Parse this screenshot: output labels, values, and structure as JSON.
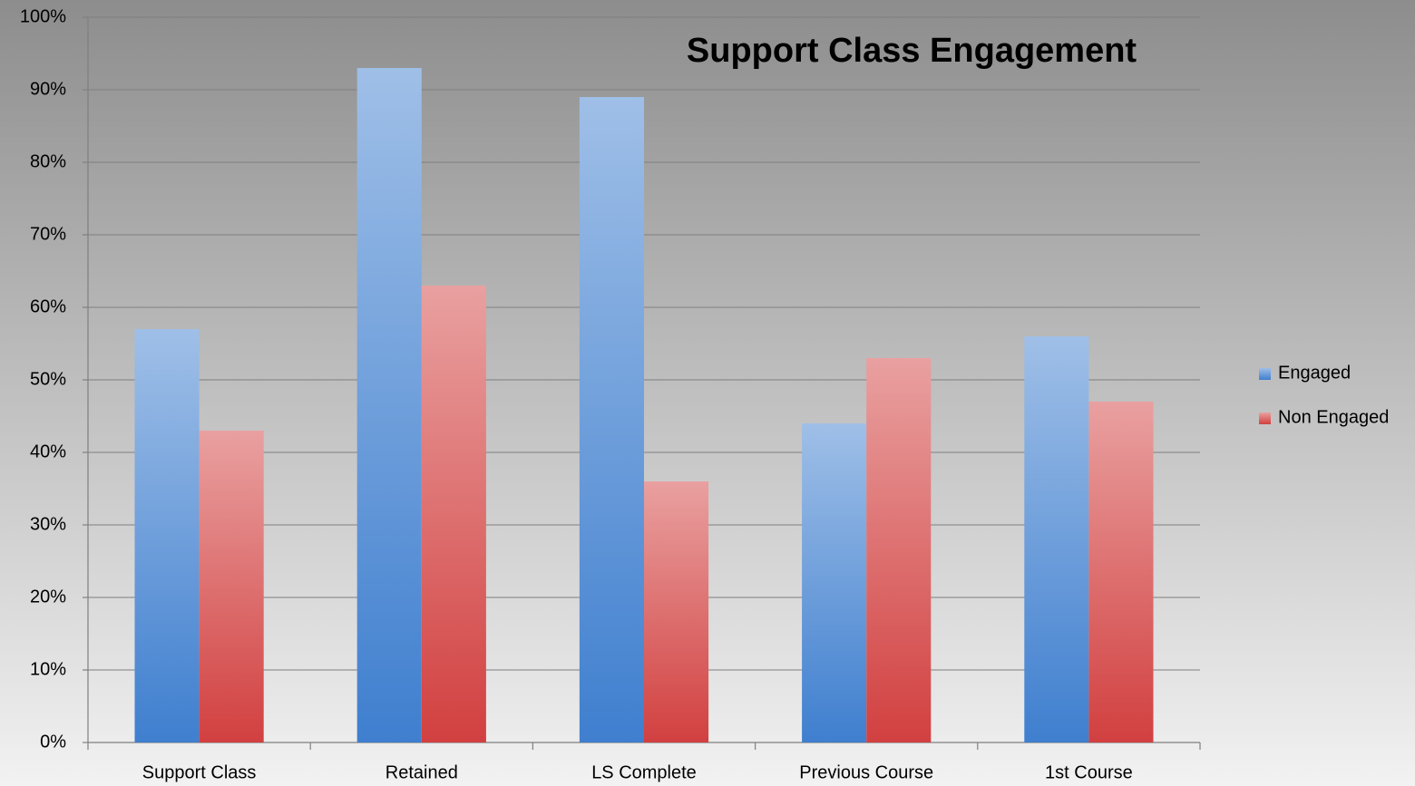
{
  "chart_data": {
    "type": "bar",
    "title": "Support Class Engagement",
    "categories": [
      "Support Class",
      "Retained",
      "LS Complete",
      "Previous Course",
      "1st Course"
    ],
    "series": [
      {
        "name": "Engaged",
        "color": "#3f7fcf",
        "values": [
          57,
          93,
          89,
          44,
          56
        ]
      },
      {
        "name": "Non Engaged",
        "color": "#d24040",
        "values": [
          43,
          63,
          36,
          53,
          47
        ]
      }
    ],
    "ylim": [
      0,
      100
    ],
    "yticks": [
      {
        "value": 0,
        "label": "0%"
      },
      {
        "value": 10,
        "label": "10%"
      },
      {
        "value": 20,
        "label": "20%"
      },
      {
        "value": 30,
        "label": "30%"
      },
      {
        "value": 40,
        "label": "40%"
      },
      {
        "value": 50,
        "label": "50%"
      },
      {
        "value": 60,
        "label": "60%"
      },
      {
        "value": 70,
        "label": "70%"
      },
      {
        "value": 80,
        "label": "80%"
      },
      {
        "value": 90,
        "label": "90%"
      },
      {
        "value": 100,
        "label": "100%"
      }
    ],
    "grid": true,
    "legend": "right"
  }
}
